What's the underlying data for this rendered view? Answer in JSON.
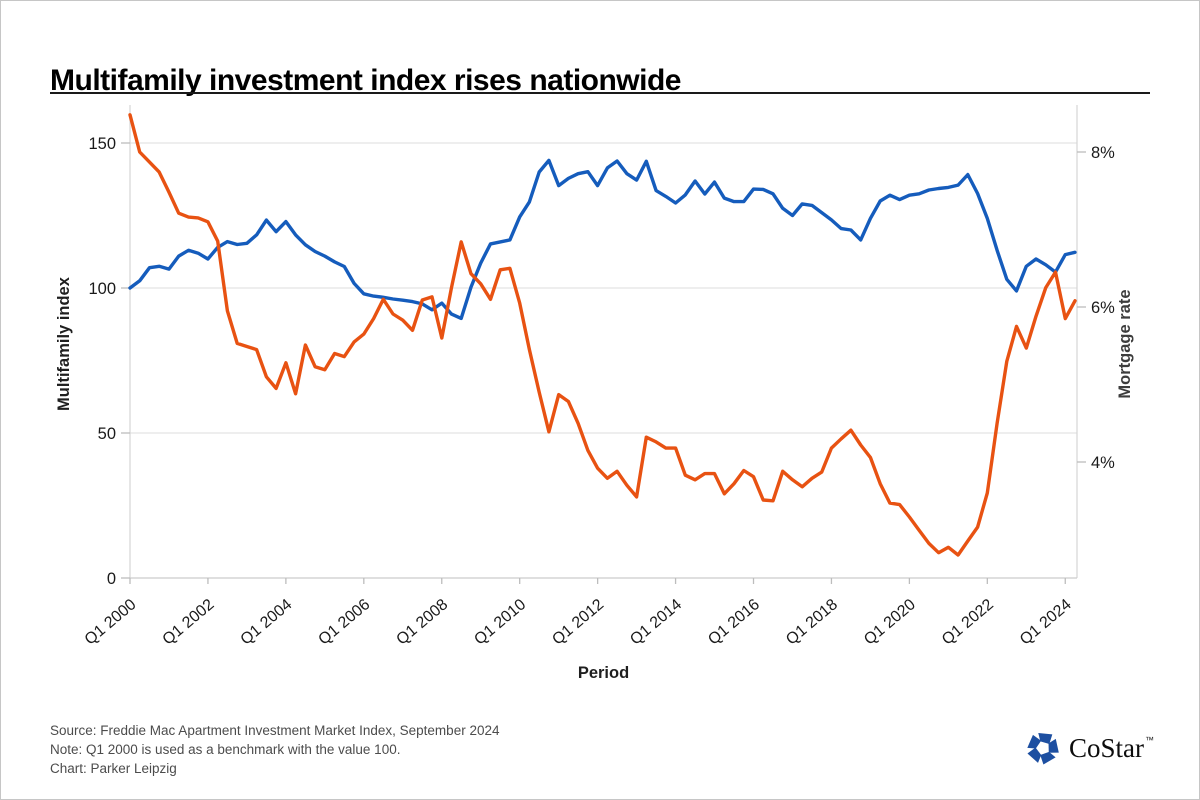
{
  "header": {
    "title": "Multifamily investment index rises nationwide"
  },
  "footer": {
    "source_line": "Source: Freddie Mac Apartment Investment Market Index, September 2024",
    "note_line": "Note: Q1 2000 is used as a benchmark with the value 100.",
    "credit_line": "Chart: Parker Leipzig"
  },
  "logo": {
    "wordmark": "CoStar",
    "trademark": "™",
    "icon_color": "#1d4fa1"
  },
  "chart_data": {
    "type": "line",
    "title": "Multifamily investment index rises nationwide",
    "xlabel": "Period",
    "ylabel_left": "Multifamily index",
    "ylabel_right": "Mortgage rate",
    "x_start": "Q1 2000",
    "x_end": "Q2 2024",
    "frequency": "quarterly",
    "x_tick_labels": [
      "Q1 2000",
      "Q1 2002",
      "Q1 2004",
      "Q1 2006",
      "Q1 2008",
      "Q1 2010",
      "Q1 2012",
      "Q1 2014",
      "Q1 2016",
      "Q1 2018",
      "Q1 2020",
      "Q1 2022",
      "Q1 2024"
    ],
    "left_axis": {
      "ticks": [
        0,
        50,
        100,
        150
      ],
      "range": [
        0,
        163
      ]
    },
    "right_axis": {
      "tick_labels": [
        "4%",
        "6%",
        "8%"
      ],
      "ticks_pct": [
        4,
        6,
        8
      ],
      "range_pct": [
        2.5,
        8.6
      ]
    },
    "grid": "horizontal",
    "legend": "none",
    "series": [
      {
        "name": "Multifamily index",
        "axis": "left",
        "color": "#155cbc",
        "values": [
          100,
          102.5,
          107,
          107.5,
          106.5,
          111,
          113,
          112,
          110,
          114,
          116,
          115,
          115.4,
          118.3,
          123.4,
          119.4,
          122.9,
          118.3,
          114.9,
          112.6,
          111,
          109,
          107.4,
          101.6,
          98,
          97.2,
          96.8,
          96.2,
          95.8,
          95.3,
          94.5,
          92.5,
          94.8,
          91,
          89.5,
          100.3,
          108.6,
          115.2,
          115.9,
          116.6,
          124.5,
          129.7,
          140,
          144,
          135.3,
          137.8,
          139.4,
          140.1,
          135.3,
          141.4,
          143.8,
          139.4,
          137.2,
          143.7,
          133.6,
          131.6,
          129.3,
          132.1,
          136.9,
          132.4,
          136.5,
          131,
          129.8,
          129.8,
          134.1,
          134,
          132.5,
          127.5,
          125,
          129,
          128.5,
          126,
          123.5,
          120.5,
          120,
          116.6,
          124,
          130,
          132,
          130.5,
          132,
          132.5,
          133.8,
          134.3,
          134.7,
          135.5,
          139.1,
          132.6,
          124,
          113,
          103,
          99,
          107.5,
          110,
          108,
          105.5,
          111.5,
          112.3
        ]
      },
      {
        "name": "Mortgage rate",
        "axis": "right",
        "color": "#e85212",
        "values": [
          8.48,
          8.0,
          7.87,
          7.74,
          7.48,
          7.21,
          7.16,
          7.15,
          7.1,
          6.85,
          5.95,
          5.53,
          5.49,
          5.45,
          5.1,
          4.95,
          5.28,
          4.88,
          5.51,
          5.23,
          5.19,
          5.4,
          5.36,
          5.55,
          5.65,
          5.85,
          6.1,
          5.91,
          5.83,
          5.7,
          6.09,
          6.13,
          5.6,
          6.25,
          6.84,
          6.43,
          6.3,
          6.1,
          6.48,
          6.5,
          6.05,
          5.45,
          4.9,
          4.39,
          4.87,
          4.78,
          4.5,
          4.15,
          3.92,
          3.79,
          3.88,
          3.7,
          3.55,
          4.32,
          4.26,
          4.18,
          4.18,
          3.83,
          3.77,
          3.85,
          3.85,
          3.59,
          3.72,
          3.89,
          3.81,
          3.51,
          3.5,
          3.88,
          3.77,
          3.68,
          3.79,
          3.87,
          4.18,
          4.3,
          4.41,
          4.22,
          4.06,
          3.72,
          3.47,
          3.45,
          3.29,
          3.12,
          2.95,
          2.83,
          2.9,
          2.8,
          2.98,
          3.16,
          3.6,
          4.5,
          5.3,
          5.75,
          5.47,
          5.88,
          6.25,
          6.45,
          5.85,
          6.08
        ]
      }
    ]
  }
}
